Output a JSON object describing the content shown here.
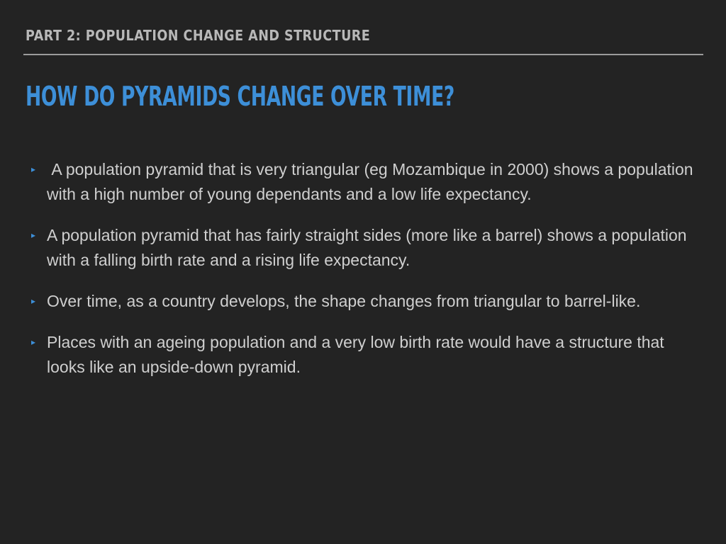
{
  "header": {
    "section_title": "PART 2: POPULATION CHANGE AND STRUCTURE"
  },
  "slide": {
    "title": "HOW DO PYRAMIDS CHANGE OVER TIME?",
    "bullet_marker": "▸",
    "accent_color": "#3d8fd8",
    "background_color": "#232323",
    "bullets": [
      {
        "text": " A population pyramid that is very triangular (eg Mozambique in 2000) shows a population with a high number of young dependants and a low life expectancy."
      },
      {
        "text": "A population pyramid that has fairly straight sides (more like a barrel) shows a population with a falling birth rate and a rising life expectancy."
      },
      {
        "text": "Over time, as a country develops, the shape changes from triangular to barrel-like."
      },
      {
        "text": "Places with an ageing population and a very low birth rate would have a structure that looks like an upside-down pyramid."
      }
    ]
  }
}
